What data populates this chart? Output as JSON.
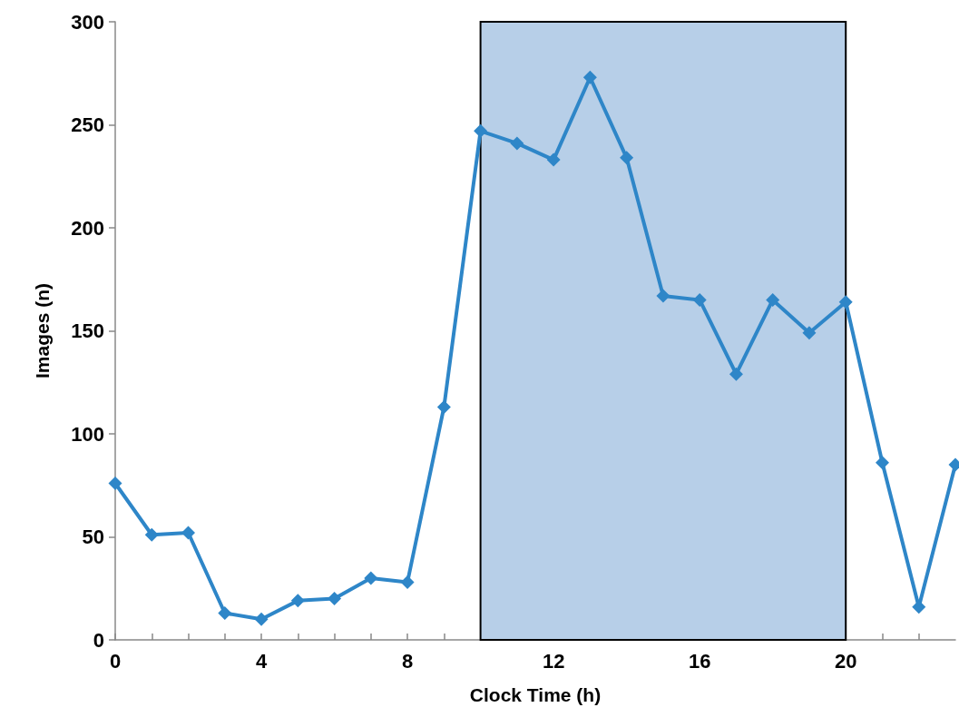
{
  "chart_data": {
    "type": "line",
    "xlabel": "Clock Time (h)",
    "ylabel": "Images (n)",
    "x": [
      0,
      1,
      2,
      3,
      4,
      5,
      6,
      7,
      8,
      9,
      10,
      11,
      12,
      13,
      14,
      15,
      16,
      17,
      18,
      19,
      20,
      21,
      22,
      23
    ],
    "series": [
      {
        "color": "#2e86c8",
        "values": [
          76,
          51,
          52,
          13,
          10,
          19,
          20,
          30,
          28,
          113,
          247,
          241,
          233,
          273,
          234,
          167,
          165,
          129,
          165,
          149,
          164,
          86,
          16,
          85
        ]
      }
    ],
    "xlim": [
      0,
      23
    ],
    "xticks": [
      0,
      {
        "value": 1,
        "label": null
      },
      {
        "value": 2,
        "label": null
      },
      {
        "value": 3,
        "label": null
      },
      4,
      {
        "value": 5,
        "label": null
      },
      {
        "value": 6,
        "label": null
      },
      {
        "value": 7,
        "label": null
      },
      8,
      {
        "value": 9,
        "label": null
      },
      {
        "value": 10,
        "label": null
      },
      {
        "value": 11,
        "label": null
      },
      12,
      {
        "value": 13,
        "label": null
      },
      {
        "value": 14,
        "label": null
      },
      {
        "value": 15,
        "label": null
      },
      16,
      {
        "value": 17,
        "label": null
      },
      {
        "value": 18,
        "label": null
      },
      {
        "value": 19,
        "label": null
      },
      20,
      {
        "value": 21,
        "label": null
      },
      {
        "value": 22,
        "label": null
      }
    ],
    "ylim": [
      0,
      300
    ],
    "yticks": [
      0,
      50,
      100,
      150,
      200,
      250,
      300
    ],
    "bands": [
      {
        "axis": "x",
        "from": 10,
        "to": 20,
        "color": "#b7cfe8"
      }
    ],
    "grid": false,
    "marker": "diamond",
    "line_style": "solid"
  }
}
